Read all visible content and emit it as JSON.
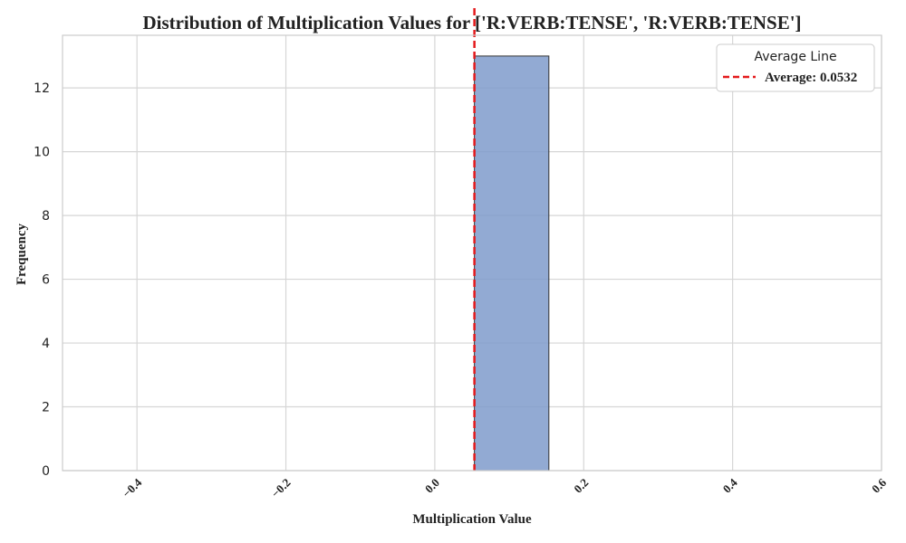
{
  "chart_data": {
    "type": "histogram",
    "title": "Distribution of Multiplication Values for ['R:VERB:TENSE', 'R:VERB:TENSE']",
    "xlabel": "Multiplication Value",
    "ylabel": "Frequency",
    "xlim": [
      -0.5,
      0.6
    ],
    "ylim": [
      0,
      13.65
    ],
    "x_ticks": [
      -0.4,
      -0.2,
      0.0,
      0.2,
      0.4,
      0.6
    ],
    "x_tick_labels": [
      "−0.4",
      "−0.2",
      "0.0",
      "0.2",
      "0.4",
      "0.6"
    ],
    "y_ticks": [
      0,
      2,
      4,
      6,
      8,
      10,
      12
    ],
    "y_tick_labels": [
      "0",
      "2",
      "4",
      "6",
      "8",
      "10",
      "12"
    ],
    "bins": [
      {
        "x0": 0.0532,
        "x1": 0.1532,
        "count": 13
      }
    ],
    "average": 0.0532,
    "grid": true,
    "legend": {
      "title": "Average Line",
      "entries": [
        {
          "label": "Average: 0.0532",
          "style": "dashed",
          "color": "#e41a1c"
        }
      ],
      "placement": "top-right"
    },
    "colors": {
      "bar_fill": "#7f9bcb",
      "bar_edge": "#333333",
      "average_line": "#e41a1c",
      "grid": "#d6d6d6",
      "axis": "#cccccc"
    }
  }
}
